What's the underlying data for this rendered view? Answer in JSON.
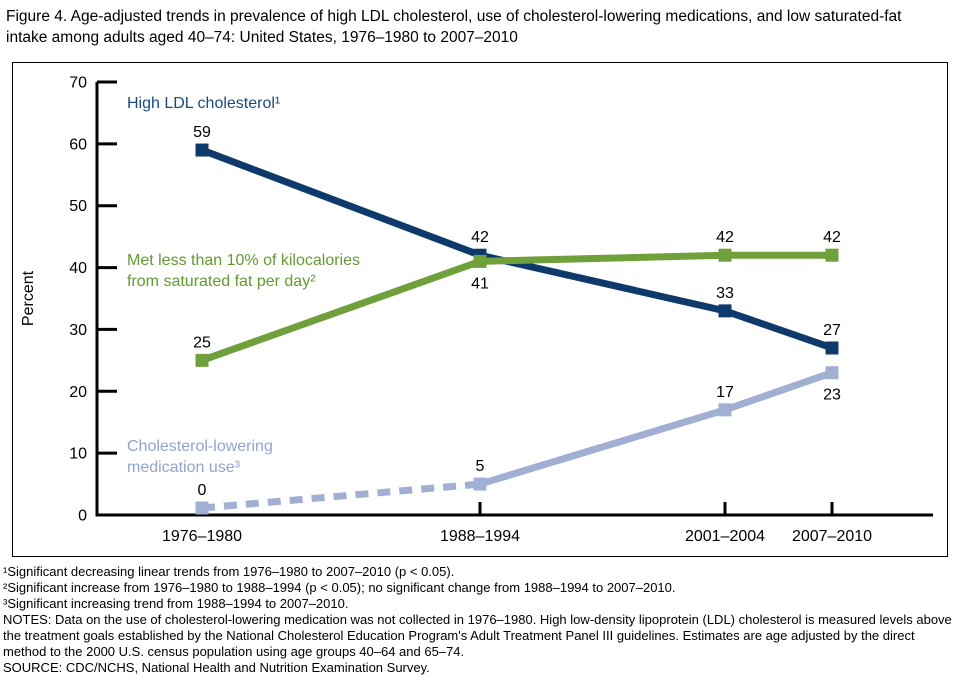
{
  "title": "Figure 4. Age-adjusted trends in prevalence of high LDL cholesterol, use of cholesterol-lowering medications, and low saturated-fat intake among adults aged 40–74: United States, 1976–1980 to 2007–2010",
  "chart_data": {
    "type": "line",
    "title": "Age-adjusted trends in prevalence of high LDL cholesterol, use of cholesterol-lowering medications, and low saturated-fat intake among adults aged 40–74",
    "xlabel": "",
    "ylabel": "Percent",
    "ylim": [
      0,
      70
    ],
    "yticks": [
      0,
      10,
      20,
      30,
      40,
      50,
      60,
      70
    ],
    "grid": false,
    "legend_position": "inline-annotations",
    "categories": [
      "1976–1980",
      "1988–1994",
      "2001–2004",
      "2007–2010"
    ],
    "series": [
      {
        "name": "High LDL cholesterol¹",
        "color": "#0d3a6b",
        "values": [
          59,
          42,
          33,
          27
        ],
        "line_style": "solid",
        "marker": "square",
        "label_positions": [
          "above",
          "above",
          "above",
          "above"
        ]
      },
      {
        "name": "Met less than 10% of kilocalories from saturated fat per day²",
        "color": "#6fa03b",
        "values": [
          25,
          41,
          42,
          42
        ],
        "line_style": "solid",
        "marker": "square",
        "label_positions": [
          "above",
          "below",
          "above",
          "above"
        ]
      },
      {
        "name": "Cholesterol-lowering medication use³",
        "color": "#a1afd3",
        "values": [
          0,
          5,
          17,
          23
        ],
        "line_style": "dashed-then-solid",
        "dashed_segments": [
          [
            0,
            1
          ]
        ],
        "marker": "square",
        "label_positions": [
          "above",
          "above",
          "above",
          "below"
        ]
      }
    ],
    "annotations": [
      {
        "color": "#1a4a80",
        "lines": [
          "High LDL cholesterol¹",
          ""
        ]
      },
      {
        "color": "#639a31",
        "lines": [
          "Met less than 10% of kilocalories",
          "from saturated fat per day²"
        ]
      },
      {
        "color": "#91a4cd",
        "lines": [
          "Cholesterol-lowering",
          "medication use³"
        ]
      }
    ]
  },
  "footnotes": [
    "¹Significant decreasing linear trends from 1976–1980 to 2007–2010 (p < 0.05).",
    "²Significant increase from 1976–1980 to 1988–1994 (p < 0.05); no significant change from 1988–1994 to 2007–2010.",
    "³Significant increasing trend from 1988–1994 to 2007–2010.",
    "NOTES: Data on the use of cholesterol-lowering medication was not collected in 1976–1980. High low-density lipoprotein (LDL) cholesterol is measured levels above the treatment goals established by the National Cholesterol Education Program's Adult Treatment Panel III guidelines. Estimates are age adjusted by the direct method to the 2000 U.S. census population using age groups 40–64 and 65–74.",
    "SOURCE: CDC/NCHS, National Health and Nutrition Examination Survey."
  ]
}
